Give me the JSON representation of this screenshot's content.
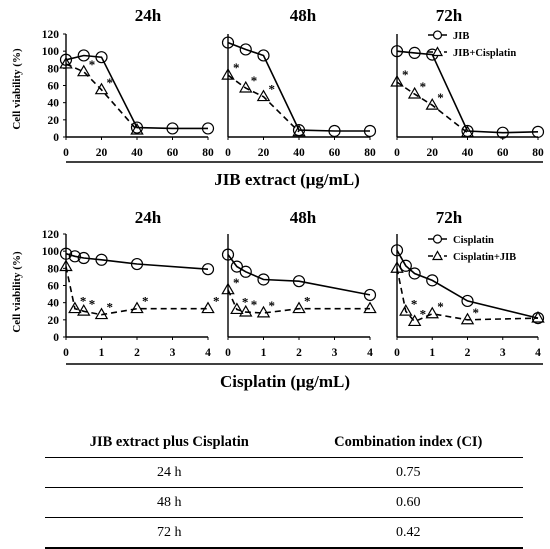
{
  "chart_data": [
    {
      "type": "line",
      "group": "top",
      "title": "24h",
      "ylabel": "Cell viability (%)",
      "ylim": [
        0,
        120
      ],
      "yticks": [
        0,
        20,
        40,
        60,
        80,
        100,
        120
      ],
      "xlim": [
        0,
        80
      ],
      "xticks": [
        0,
        20,
        40,
        60,
        80
      ],
      "series": [
        {
          "x": [
            0,
            10,
            20,
            40,
            60,
            80
          ],
          "values": [
            90,
            95,
            93,
            11,
            10,
            10
          ],
          "style": "solid",
          "marker": "circle"
        },
        {
          "x": [
            0,
            10,
            20,
            40
          ],
          "values": [
            85,
            76,
            55,
            8
          ],
          "style": "dashed",
          "marker": "triangle",
          "significant": [
            false,
            true,
            true,
            false
          ]
        }
      ]
    },
    {
      "type": "line",
      "group": "top",
      "title": "48h",
      "ylim": [
        0,
        120
      ],
      "xlim": [
        0,
        80
      ],
      "xticks": [
        0,
        20,
        40,
        60,
        80
      ],
      "series": [
        {
          "x": [
            0,
            10,
            20,
            40,
            60,
            80
          ],
          "values": [
            110,
            102,
            95,
            8,
            7,
            7
          ],
          "style": "solid",
          "marker": "circle"
        },
        {
          "x": [
            0,
            10,
            20,
            40
          ],
          "values": [
            72,
            57,
            47,
            6
          ],
          "style": "dashed",
          "marker": "triangle",
          "significant": [
            true,
            true,
            true,
            false
          ]
        }
      ]
    },
    {
      "type": "line",
      "group": "top",
      "title": "72h",
      "ylim": [
        0,
        120
      ],
      "xlim": [
        0,
        80
      ],
      "xticks": [
        0,
        20,
        40,
        60,
        80
      ],
      "series": [
        {
          "name": "JIB",
          "x": [
            0,
            10,
            20,
            40,
            60,
            80
          ],
          "values": [
            100,
            98,
            96,
            7,
            5,
            6
          ],
          "style": "solid",
          "marker": "circle"
        },
        {
          "name": "JIB+Cisplatin",
          "x": [
            0,
            10,
            20,
            40
          ],
          "values": [
            64,
            50,
            37,
            5
          ],
          "style": "dashed",
          "marker": "triangle",
          "significant": [
            true,
            true,
            true,
            false
          ]
        }
      ],
      "legend_position": "top-right"
    },
    {
      "type": "line",
      "group": "bottom",
      "title": "24h",
      "ylabel": "Cell viability (%)",
      "ylim": [
        0,
        120
      ],
      "yticks": [
        0,
        20,
        40,
        60,
        80,
        100,
        120
      ],
      "xlim": [
        0,
        4
      ],
      "xticks": [
        0,
        1,
        2,
        3,
        4
      ],
      "series": [
        {
          "x": [
            0,
            0.25,
            0.5,
            1,
            2,
            4
          ],
          "values": [
            97,
            94,
            92,
            90,
            85,
            79
          ],
          "style": "solid",
          "marker": "circle"
        },
        {
          "x": [
            0,
            0.25,
            0.5,
            1,
            2,
            4
          ],
          "values": [
            82,
            33,
            30,
            26,
            33,
            33
          ],
          "style": "dashed",
          "marker": "triangle",
          "significant": [
            false,
            true,
            true,
            true,
            true,
            true
          ]
        }
      ]
    },
    {
      "type": "line",
      "group": "bottom",
      "title": "48h",
      "ylim": [
        0,
        120
      ],
      "xlim": [
        0,
        4
      ],
      "xticks": [
        0,
        1,
        2,
        3,
        4
      ],
      "series": [
        {
          "x": [
            0,
            0.25,
            0.5,
            1,
            2,
            4
          ],
          "values": [
            96,
            82,
            76,
            67,
            65,
            49
          ],
          "style": "solid",
          "marker": "circle"
        },
        {
          "x": [
            0,
            0.25,
            0.5,
            1,
            2,
            4
          ],
          "values": [
            55,
            32,
            29,
            28,
            33,
            33
          ],
          "style": "dashed",
          "marker": "triangle",
          "significant": [
            true,
            true,
            true,
            true,
            true,
            false
          ]
        }
      ]
    },
    {
      "type": "line",
      "group": "bottom",
      "title": "72h",
      "ylim": [
        0,
        120
      ],
      "xlim": [
        0,
        4
      ],
      "xticks": [
        0,
        1,
        2,
        3,
        4
      ],
      "series": [
        {
          "name": "Cisplatin",
          "x": [
            0,
            0.25,
            0.5,
            1,
            2,
            4
          ],
          "values": [
            101,
            83,
            74,
            66,
            42,
            22
          ],
          "style": "solid",
          "marker": "circle"
        },
        {
          "name": "Cisplatin+JIB",
          "x": [
            0,
            0.25,
            0.5,
            1,
            2,
            4
          ],
          "values": [
            80,
            30,
            18,
            27,
            20,
            22
          ],
          "style": "dashed",
          "marker": "triangle",
          "significant": [
            false,
            true,
            true,
            true,
            true,
            false
          ]
        }
      ],
      "legend_position": "top-right"
    }
  ],
  "xlabel_top": "JIB extract (μg/mL)",
  "xlabel_bottom": "Cisplatin (μg/mL)",
  "significance_mark": "*",
  "ci_table": {
    "headers": [
      "JIB extract plus Cisplatin",
      "Combination index (CI)"
    ],
    "rows": [
      {
        "time": "24 h",
        "ci": "0.75"
      },
      {
        "time": "48 h",
        "ci": "0.60"
      },
      {
        "time": "72 h",
        "ci": "0.42"
      }
    ]
  }
}
